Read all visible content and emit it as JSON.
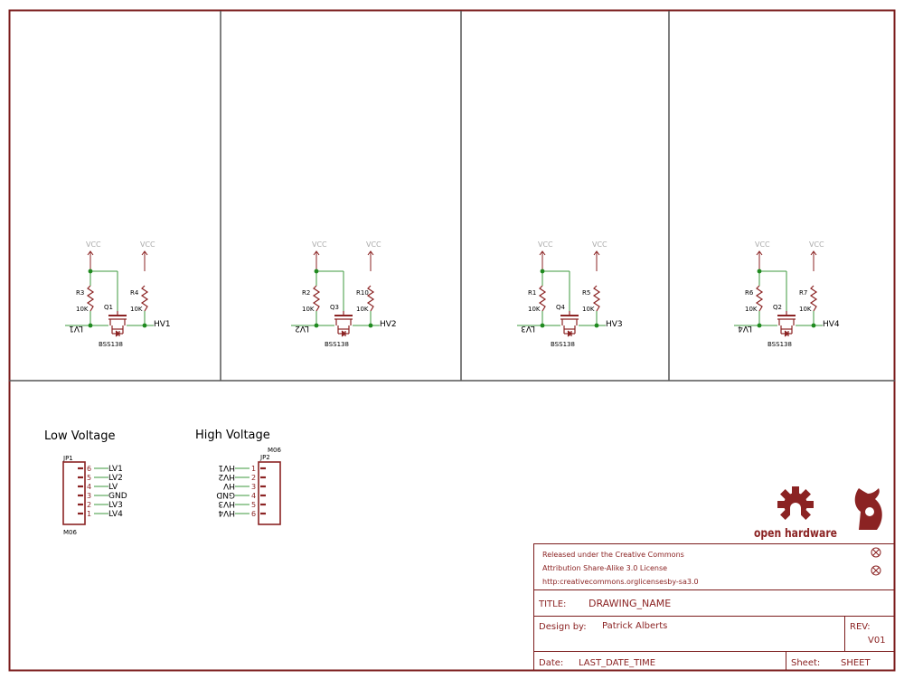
{
  "colors": {
    "frame": "#7b1c1c",
    "divider": "#555555",
    "wire": "#3c9a3c",
    "junction": "#1f8a1f",
    "symbol": "#8b2323",
    "supply": "#aaaaaa",
    "text": "#000000",
    "logo": "#8b2323"
  },
  "channels": [
    {
      "vcc_left": "VCC",
      "vcc_right": "VCC",
      "r_left": "R3",
      "r_left_val": "10K",
      "r_right": "R4",
      "r_right_val": "10K",
      "q": "Q1",
      "part": "BSS138",
      "lv": "LV1",
      "hv": "HV1"
    },
    {
      "vcc_left": "VCC",
      "vcc_right": "VCC",
      "r_left": "R2",
      "r_left_val": "10K",
      "r_right": "R10",
      "r_right_val": "10K",
      "q": "Q3",
      "part": "BSS138",
      "lv": "LV2",
      "hv": "HV2"
    },
    {
      "vcc_left": "VCC",
      "vcc_right": "VCC",
      "r_left": "R1",
      "r_left_val": "10K",
      "r_right": "R5",
      "r_right_val": "10K",
      "q": "Q4",
      "part": "BSS138",
      "lv": "LV3",
      "hv": "HV3"
    },
    {
      "vcc_left": "VCC",
      "vcc_right": "VCC",
      "r_left": "R6",
      "r_left_val": "10K",
      "r_right": "R7",
      "r_right_val": "10K",
      "q": "Q2",
      "part": "BSS138",
      "lv": "LV4",
      "hv": "HV4"
    }
  ],
  "low_voltage": {
    "title": "Low Voltage",
    "ref": "JP1",
    "value": "M06",
    "pins": [
      {
        "num": "6",
        "net": "LV1"
      },
      {
        "num": "5",
        "net": "LV2"
      },
      {
        "num": "4",
        "net": "LV"
      },
      {
        "num": "3",
        "net": "GND"
      },
      {
        "num": "2",
        "net": "LV3"
      },
      {
        "num": "1",
        "net": "LV4"
      }
    ]
  },
  "high_voltage": {
    "title": "High Voltage",
    "ref": "JP2",
    "value": "M06",
    "pins": [
      {
        "num": "1",
        "net": "HV1"
      },
      {
        "num": "2",
        "net": "HV2"
      },
      {
        "num": "3",
        "net": "HV"
      },
      {
        "num": "4",
        "net": "GND"
      },
      {
        "num": "5",
        "net": "HV3"
      },
      {
        "num": "6",
        "net": "HV4"
      }
    ]
  },
  "logos": {
    "oshw_text": "open hardware"
  },
  "title_block": {
    "license_line1": "Released under the Creative Commons",
    "license_line2": "Attribution Share-Alike 3.0 License",
    "license_line3": "http:creativecommons.orglicensesby-sa3.0",
    "title_label": "TITLE:",
    "title_value": "DRAWING_NAME",
    "design_label": "Design by:",
    "design_value": "Patrick Alberts",
    "rev_label": "REV:",
    "rev_value": "V01",
    "date_label": "Date:",
    "date_value": "LAST_DATE_TIME",
    "sheet_label": "Sheet:",
    "sheet_value": "SHEET"
  }
}
